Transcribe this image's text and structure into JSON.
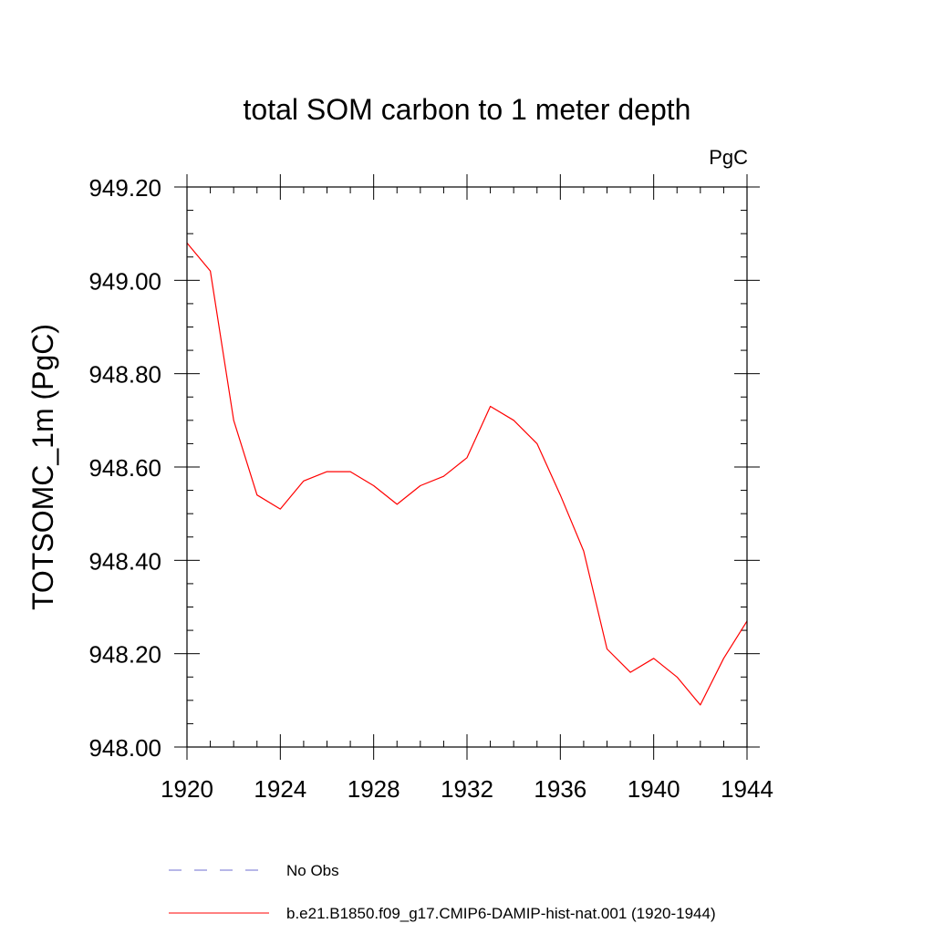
{
  "chart_data": {
    "type": "line",
    "title": "total SOM carbon to 1 meter depth",
    "units_label": "PgC",
    "ylabel": "TOTSOMC_1m  (PgC)",
    "xlabel": "",
    "xlim": [
      1920,
      1944
    ],
    "ylim": [
      948.0,
      949.2
    ],
    "x_ticks": [
      "1920",
      "1924",
      "1928",
      "1932",
      "1936",
      "1940",
      "1944"
    ],
    "y_ticks": [
      "948.00",
      "948.20",
      "948.40",
      "948.60",
      "948.80",
      "949.00",
      "949.20"
    ],
    "grid": false,
    "legend_placement": "bottom-left",
    "legend": [
      {
        "label": "No Obs",
        "color": "#6f6fd0",
        "style": "dashed"
      },
      {
        "label": "b.e21.B1850.f09_g17.CMIP6-DAMIP-hist-nat.001 (1920-1944)",
        "color": "#ff0000",
        "style": "solid"
      }
    ],
    "series": [
      {
        "name": "b.e21.B1850.f09_g17.CMIP6-DAMIP-hist-nat.001 (1920-1944)",
        "color": "#ff0000",
        "x": [
          1920,
          1921,
          1922,
          1923,
          1924,
          1925,
          1926,
          1927,
          1928,
          1929,
          1930,
          1931,
          1932,
          1933,
          1934,
          1935,
          1936,
          1937,
          1938,
          1939,
          1940,
          1941,
          1942,
          1943,
          1944
        ],
        "values": [
          949.08,
          949.02,
          948.7,
          948.54,
          948.51,
          948.57,
          948.59,
          948.59,
          948.56,
          948.52,
          948.56,
          948.58,
          948.62,
          948.73,
          948.7,
          948.65,
          948.54,
          948.42,
          948.21,
          948.16,
          948.19,
          948.15,
          948.09,
          948.19,
          948.27
        ]
      }
    ]
  }
}
